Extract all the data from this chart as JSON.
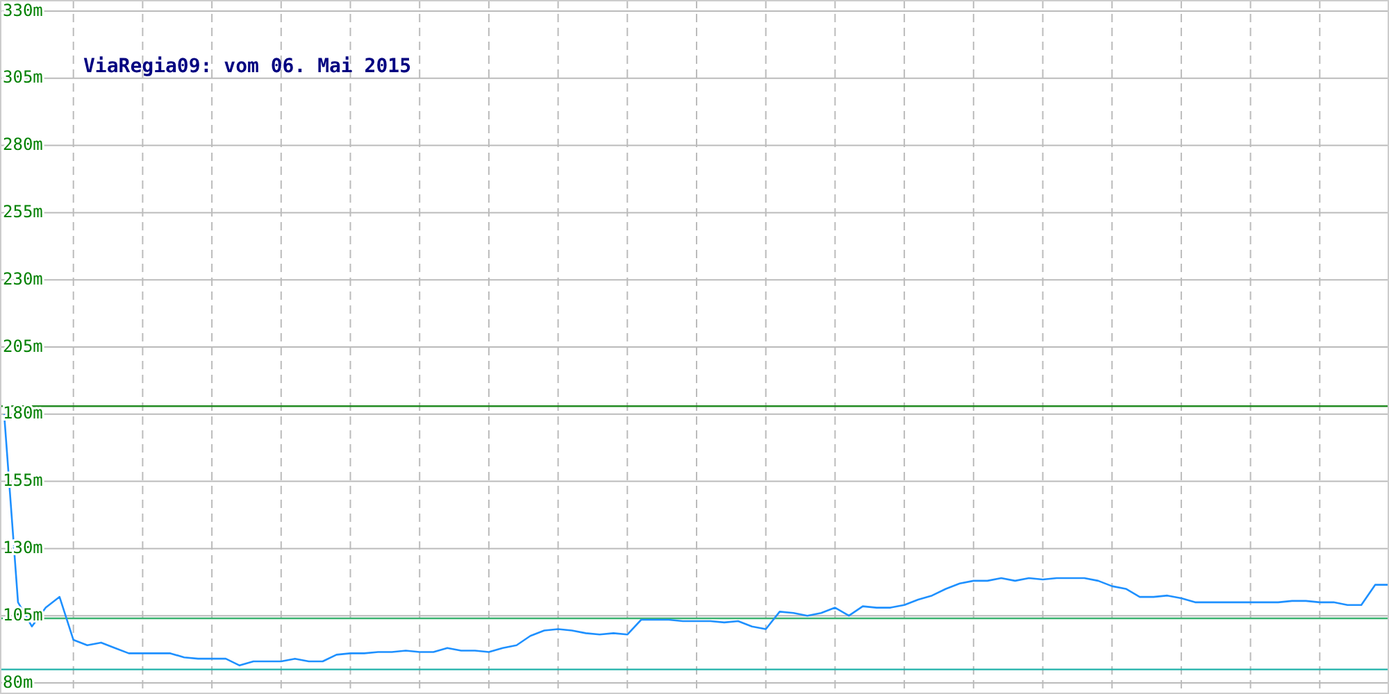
{
  "chart_data": {
    "type": "line",
    "title": "ViaRegia09: vom 06. Mai 2015",
    "categories": [
      null,
      null,
      null,
      null,
      null,
      null,
      null,
      null,
      null,
      null,
      null,
      null,
      null,
      null,
      null,
      null,
      null,
      null,
      null,
      null,
      null,
      null,
      null,
      null,
      null,
      null,
      null,
      null,
      null,
      null,
      null,
      null,
      null,
      null,
      null,
      null,
      null,
      null,
      null,
      null,
      null,
      null,
      null,
      null,
      null,
      null,
      null,
      null,
      null,
      null,
      null,
      null,
      null,
      null,
      null,
      null,
      null,
      null,
      null,
      null,
      null,
      null,
      null,
      null,
      null,
      null,
      null,
      null,
      null,
      null,
      null,
      null,
      null,
      null,
      null,
      null,
      null,
      null,
      null,
      null,
      null,
      null,
      null,
      null,
      null,
      null,
      null,
      null,
      null,
      null,
      null,
      null,
      null,
      null,
      null,
      null,
      null,
      null,
      null,
      null,
      null
    ],
    "series": [
      {
        "color": "#1e90ff",
        "values": [
          180,
          110,
          101,
          108,
          112,
          96,
          94,
          95,
          93,
          91,
          91,
          91,
          91,
          89.5,
          89,
          89,
          89,
          86.5,
          88,
          88,
          88,
          89,
          88,
          88,
          90.5,
          91,
          91,
          91.5,
          91.5,
          92,
          91.5,
          91.5,
          93,
          92,
          92,
          91.5,
          93,
          94,
          97.5,
          99.5,
          100,
          99.5,
          98.5,
          98,
          98.5,
          98,
          103.5,
          103.5,
          103.5,
          103,
          103,
          103,
          102.5,
          103,
          101,
          100,
          106.5,
          106,
          105,
          106,
          108,
          105,
          108.5,
          108,
          108,
          109,
          111,
          112.5,
          115,
          117,
          118,
          118,
          119,
          118,
          119,
          118.5,
          119,
          119,
          119,
          118,
          116,
          115,
          112,
          112,
          112.5,
          111.5,
          110,
          110,
          110,
          110,
          110,
          110,
          110,
          110.5,
          110.5,
          110,
          110,
          109,
          109,
          116.5,
          116.5
        ]
      }
    ],
    "ylim": [
      80,
      330
    ],
    "yticks": [
      {
        "value": 80,
        "label": "80m"
      },
      {
        "value": 105,
        "label": "105m"
      },
      {
        "value": 130,
        "label": "130m"
      },
      {
        "value": 155,
        "label": "155m"
      },
      {
        "value": 180,
        "label": "180m"
      },
      {
        "value": 205,
        "label": "205m"
      },
      {
        "value": 230,
        "label": "230m"
      },
      {
        "value": 255,
        "label": "255m"
      },
      {
        "value": 280,
        "label": "280m"
      },
      {
        "value": 305,
        "label": "305m"
      },
      {
        "value": 330,
        "label": "330m"
      }
    ],
    "ref_lines": [
      {
        "axis": "y",
        "value": 183,
        "color": "#228b22"
      },
      {
        "axis": "y",
        "value": 104,
        "color": "#3cb371"
      },
      {
        "axis": "y",
        "value": 85,
        "color": "#20b2aa"
      }
    ],
    "grid": true,
    "tick_labels": "y",
    "marker": "none",
    "line_style": "solid"
  }
}
